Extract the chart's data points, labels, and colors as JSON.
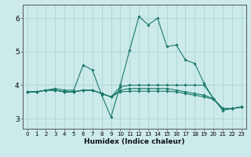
{
  "xlabel": "Humidex (Indice chaleur)",
  "xlim": [
    -0.5,
    23.5
  ],
  "ylim": [
    2.7,
    6.4
  ],
  "yticks": [
    3,
    4,
    5,
    6
  ],
  "xticks": [
    0,
    1,
    2,
    3,
    4,
    5,
    6,
    7,
    8,
    9,
    10,
    11,
    12,
    13,
    14,
    15,
    16,
    17,
    18,
    19,
    20,
    21,
    22,
    23
  ],
  "background_color": "#cceaea",
  "grid_color": "#aad4d4",
  "line_color": "#1a7a6a",
  "lines": [
    {
      "x": [
        0,
        1,
        2,
        3,
        4,
        5,
        6,
        7,
        8,
        9,
        10,
        11,
        12,
        13,
        14,
        15,
        16,
        17,
        18,
        19,
        20,
        21,
        22,
        23
      ],
      "y": [
        3.8,
        3.8,
        3.85,
        3.9,
        3.85,
        3.85,
        4.6,
        4.45,
        3.7,
        3.05,
        4.0,
        5.05,
        6.05,
        5.8,
        6.0,
        5.15,
        5.2,
        4.75,
        4.65,
        4.05,
        3.6,
        3.25,
        3.3,
        3.35
      ]
    },
    {
      "x": [
        0,
        1,
        2,
        3,
        4,
        5,
        6,
        7,
        8,
        9,
        10,
        11,
        12,
        13,
        14,
        15,
        16,
        17,
        18,
        19,
        20,
        21,
        22,
        23
      ],
      "y": [
        3.8,
        3.8,
        3.85,
        3.85,
        3.8,
        3.8,
        3.85,
        3.85,
        3.75,
        3.65,
        3.95,
        4.0,
        4.0,
        4.0,
        4.0,
        4.0,
        4.0,
        4.0,
        4.0,
        4.0,
        3.6,
        3.3,
        3.3,
        3.35
      ]
    },
    {
      "x": [
        0,
        1,
        2,
        3,
        4,
        5,
        6,
        7,
        8,
        9,
        10,
        11,
        12,
        13,
        14,
        15,
        16,
        17,
        18,
        19,
        20,
        21,
        22,
        23
      ],
      "y": [
        3.8,
        3.8,
        3.85,
        3.85,
        3.8,
        3.8,
        3.85,
        3.85,
        3.75,
        3.65,
        3.85,
        3.9,
        3.9,
        3.9,
        3.9,
        3.9,
        3.85,
        3.8,
        3.75,
        3.7,
        3.6,
        3.3,
        3.3,
        3.35
      ]
    },
    {
      "x": [
        0,
        1,
        2,
        3,
        4,
        5,
        6,
        7,
        8,
        9,
        10,
        11,
        12,
        13,
        14,
        15,
        16,
        17,
        18,
        19,
        20,
        21,
        22,
        23
      ],
      "y": [
        3.8,
        3.8,
        3.85,
        3.85,
        3.8,
        3.8,
        3.85,
        3.85,
        3.75,
        3.65,
        3.8,
        3.82,
        3.82,
        3.82,
        3.82,
        3.82,
        3.8,
        3.75,
        3.7,
        3.65,
        3.58,
        3.3,
        3.3,
        3.35
      ]
    }
  ]
}
